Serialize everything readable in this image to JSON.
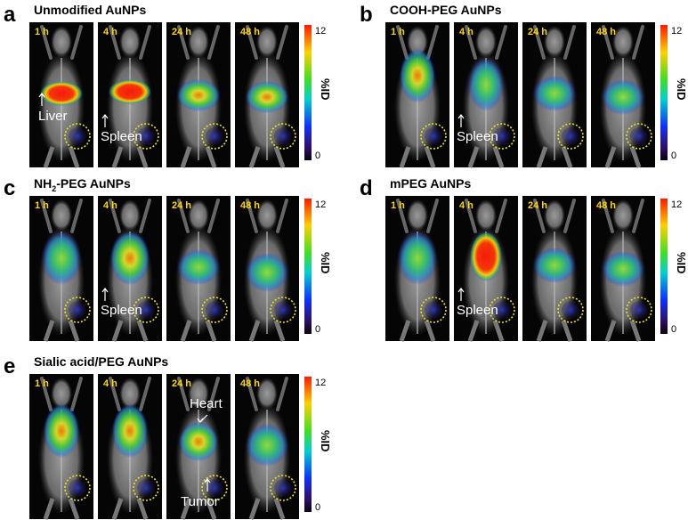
{
  "panels": [
    {
      "letter": "a",
      "title": "Unmodified AuNPs",
      "images": [
        {
          "time": "1 h",
          "annotations": [
            "Liver"
          ]
        },
        {
          "time": "4 h",
          "annotations": [
            "Spleen"
          ]
        },
        {
          "time": "24 h"
        },
        {
          "time": "48 h"
        }
      ],
      "colorbar": {
        "max": "12",
        "min": "0",
        "label": "%ID"
      }
    },
    {
      "letter": "b",
      "title": "COOH-PEG AuNPs",
      "images": [
        {
          "time": "1 h"
        },
        {
          "time": "4 h",
          "annotations": [
            "Spleen"
          ]
        },
        {
          "time": "24 h"
        },
        {
          "time": "48 h"
        }
      ],
      "colorbar": {
        "max": "12",
        "min": "0",
        "label": "%ID"
      }
    },
    {
      "letter": "c",
      "title": [
        "NH",
        "2",
        "-PEG AuNPs"
      ],
      "images": [
        {
          "time": "1 h"
        },
        {
          "time": "4 h",
          "annotations": [
            "Spleen"
          ]
        },
        {
          "time": "24 h"
        },
        {
          "time": "48 h"
        }
      ],
      "colorbar": {
        "max": "12",
        "min": "0",
        "label": "%ID"
      }
    },
    {
      "letter": "d",
      "title": "mPEG AuNPs",
      "images": [
        {
          "time": "1 h"
        },
        {
          "time": "4 h",
          "annotations": [
            "Spleen"
          ]
        },
        {
          "time": "24 h"
        },
        {
          "time": "48 h"
        }
      ],
      "colorbar": {
        "max": "12",
        "min": "0",
        "label": "%ID"
      }
    },
    {
      "letter": "e",
      "title": "Sialic acid/PEG AuNPs",
      "images": [
        {
          "time": "1 h"
        },
        {
          "time": "4 h"
        },
        {
          "time": "24 h",
          "annotations": [
            "Heart",
            "Tumor"
          ]
        },
        {
          "time": "48 h"
        }
      ],
      "colorbar": {
        "max": "12",
        "min": "0",
        "label": "%ID"
      }
    }
  ]
}
